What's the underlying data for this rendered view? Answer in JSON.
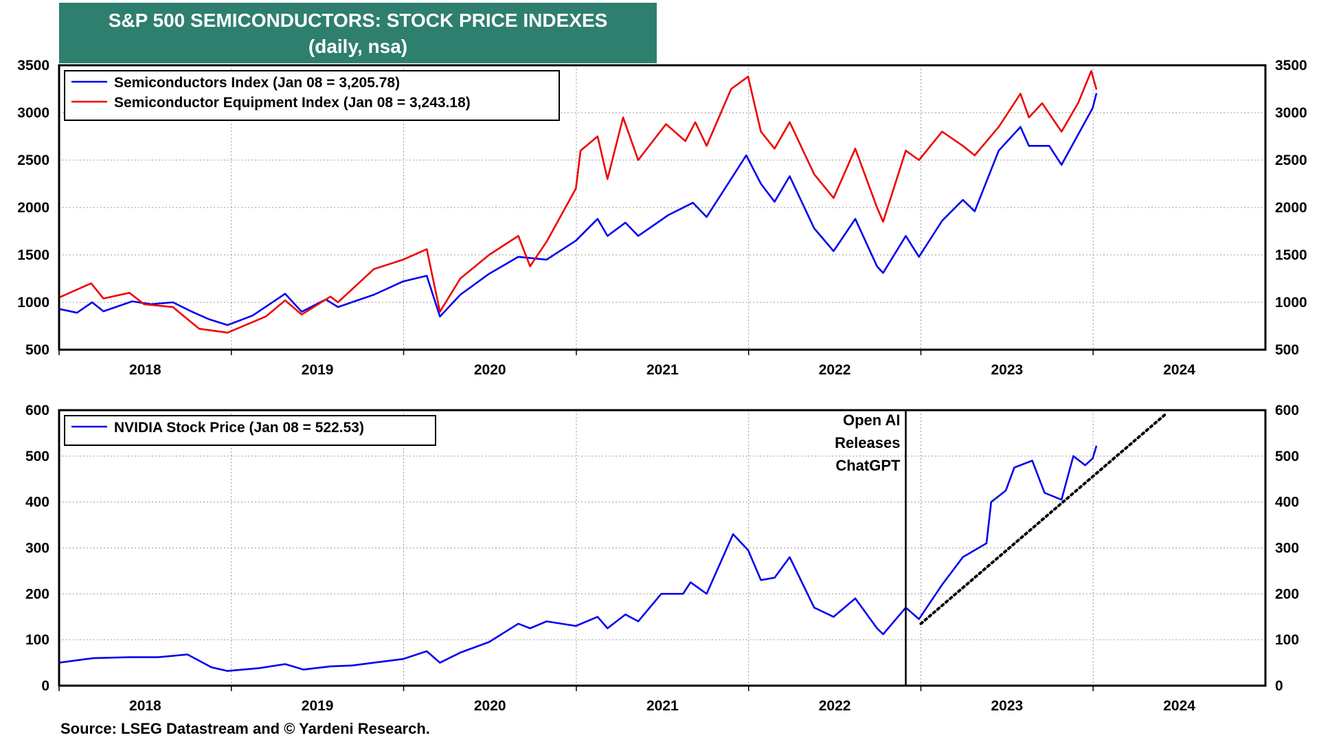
{
  "header": {
    "title": "S&P 500 SEMICONDUCTORS: STOCK PRICE INDEXES",
    "subtitle": "(daily, nsa)"
  },
  "footer": {
    "source": "Source: LSEG Datastream and © Yardeni Research."
  },
  "colors": {
    "title_bg": "#2f7f6e",
    "semis": "#0000ee",
    "equipment": "#ee0000",
    "nvidia": "#0000ee"
  },
  "chart_data": [
    {
      "type": "line",
      "x_tick_labels": [
        "2018",
        "2019",
        "2020",
        "2021",
        "2022",
        "2023",
        "2024"
      ],
      "xlim": [
        "2018-01-01",
        "2024-12-31"
      ],
      "ylim": [
        500,
        3500
      ],
      "y_ticks": [
        500,
        1000,
        1500,
        2000,
        2500,
        3000,
        3500
      ],
      "grid": true,
      "legend_position": "top-left",
      "series": [
        {
          "name": "Semiconductors Index (Jan 08 = 3,205.78)",
          "color": "#0000ee",
          "points": [
            [
              "2018-01-01",
              930
            ],
            [
              "2018-02-08",
              890
            ],
            [
              "2018-03-12",
              1000
            ],
            [
              "2018-04-05",
              905
            ],
            [
              "2018-06-05",
              1010
            ],
            [
              "2018-07-15",
              980
            ],
            [
              "2018-08-30",
              1000
            ],
            [
              "2018-10-10",
              900
            ],
            [
              "2018-11-15",
              820
            ],
            [
              "2018-12-24",
              760
            ],
            [
              "2019-02-15",
              860
            ],
            [
              "2019-04-25",
              1090
            ],
            [
              "2019-05-30",
              900
            ],
            [
              "2019-07-20",
              1030
            ],
            [
              "2019-08-15",
              950
            ],
            [
              "2019-10-30",
              1080
            ],
            [
              "2019-12-31",
              1220
            ],
            [
              "2020-02-19",
              1280
            ],
            [
              "2020-03-18",
              850
            ],
            [
              "2020-04-30",
              1080
            ],
            [
              "2020-06-30",
              1300
            ],
            [
              "2020-08-31",
              1480
            ],
            [
              "2020-10-30",
              1450
            ],
            [
              "2020-12-31",
              1650
            ],
            [
              "2021-02-15",
              1880
            ],
            [
              "2021-03-08",
              1700
            ],
            [
              "2021-04-15",
              1840
            ],
            [
              "2021-05-12",
              1700
            ],
            [
              "2021-07-15",
              1920
            ],
            [
              "2021-09-05",
              2050
            ],
            [
              "2021-10-04",
              1900
            ],
            [
              "2021-12-27",
              2550
            ],
            [
              "2022-01-27",
              2250
            ],
            [
              "2022-02-25",
              2060
            ],
            [
              "2022-03-29",
              2330
            ],
            [
              "2022-05-20",
              1780
            ],
            [
              "2022-06-30",
              1540
            ],
            [
              "2022-08-15",
              1880
            ],
            [
              "2022-09-30",
              1380
            ],
            [
              "2022-10-13",
              1310
            ],
            [
              "2022-11-30",
              1700
            ],
            [
              "2022-12-28",
              1480
            ],
            [
              "2023-02-15",
              1860
            ],
            [
              "2023-03-31",
              2080
            ],
            [
              "2023-04-25",
              1960
            ],
            [
              "2023-06-15",
              2600
            ],
            [
              "2023-07-31",
              2850
            ],
            [
              "2023-08-18",
              2650
            ],
            [
              "2023-09-30",
              2650
            ],
            [
              "2023-10-26",
              2450
            ],
            [
              "2023-12-31",
              3050
            ],
            [
              "2024-01-08",
              3205.78
            ]
          ]
        },
        {
          "name": "Semiconductor Equipment Index (Jan 08 = 3,243.18)",
          "color": "#ee0000",
          "points": [
            [
              "2018-01-01",
              1050
            ],
            [
              "2018-03-10",
              1200
            ],
            [
              "2018-04-05",
              1040
            ],
            [
              "2018-05-30",
              1100
            ],
            [
              "2018-06-30",
              980
            ],
            [
              "2018-08-30",
              950
            ],
            [
              "2018-10-25",
              720
            ],
            [
              "2018-12-24",
              680
            ],
            [
              "2019-03-15",
              850
            ],
            [
              "2019-04-25",
              1020
            ],
            [
              "2019-05-30",
              870
            ],
            [
              "2019-07-30",
              1060
            ],
            [
              "2019-08-15",
              1000
            ],
            [
              "2019-10-30",
              1350
            ],
            [
              "2019-12-31",
              1450
            ],
            [
              "2020-02-19",
              1560
            ],
            [
              "2020-03-18",
              900
            ],
            [
              "2020-04-30",
              1250
            ],
            [
              "2020-06-30",
              1500
            ],
            [
              "2020-08-31",
              1700
            ],
            [
              "2020-09-25",
              1380
            ],
            [
              "2020-10-30",
              1640
            ],
            [
              "2020-12-31",
              2200
            ],
            [
              "2021-01-10",
              2600
            ],
            [
              "2021-02-15",
              2750
            ],
            [
              "2021-03-08",
              2300
            ],
            [
              "2021-04-10",
              2950
            ],
            [
              "2021-05-12",
              2500
            ],
            [
              "2021-07-10",
              2880
            ],
            [
              "2021-08-20",
              2700
            ],
            [
              "2021-09-10",
              2900
            ],
            [
              "2021-10-04",
              2650
            ],
            [
              "2021-11-25",
              3250
            ],
            [
              "2021-12-31",
              3380
            ],
            [
              "2022-01-27",
              2800
            ],
            [
              "2022-02-25",
              2620
            ],
            [
              "2022-03-29",
              2900
            ],
            [
              "2022-05-20",
              2350
            ],
            [
              "2022-06-30",
              2100
            ],
            [
              "2022-08-15",
              2620
            ],
            [
              "2022-09-30",
              2000
            ],
            [
              "2022-10-13",
              1850
            ],
            [
              "2022-11-30",
              2600
            ],
            [
              "2022-12-28",
              2500
            ],
            [
              "2023-02-15",
              2800
            ],
            [
              "2023-03-31",
              2650
            ],
            [
              "2023-04-25",
              2550
            ],
            [
              "2023-06-15",
              2850
            ],
            [
              "2023-07-31",
              3200
            ],
            [
              "2023-08-18",
              2950
            ],
            [
              "2023-09-15",
              3100
            ],
            [
              "2023-10-26",
              2800
            ],
            [
              "2023-11-30",
              3100
            ],
            [
              "2023-12-28",
              3440
            ],
            [
              "2024-01-08",
              3243.18
            ]
          ]
        }
      ]
    },
    {
      "type": "line",
      "x_tick_labels": [
        "2018",
        "2019",
        "2020",
        "2021",
        "2022",
        "2023",
        "2024"
      ],
      "xlim": [
        "2018-01-01",
        "2024-12-31"
      ],
      "ylim": [
        0,
        600
      ],
      "y_ticks": [
        0,
        100,
        200,
        300,
        400,
        500,
        600
      ],
      "grid": true,
      "legend_position": "top-left",
      "series": [
        {
          "name": "NVIDIA Stock Price (Jan 08 = 522.53)",
          "color": "#0000ee",
          "points": [
            [
              "2018-01-01",
              50
            ],
            [
              "2018-03-15",
              60
            ],
            [
              "2018-05-30",
              62
            ],
            [
              "2018-07-30",
              62
            ],
            [
              "2018-09-30",
              68
            ],
            [
              "2018-11-20",
              40
            ],
            [
              "2018-12-24",
              32
            ],
            [
              "2019-02-28",
              38
            ],
            [
              "2019-04-25",
              47
            ],
            [
              "2019-06-03",
              35
            ],
            [
              "2019-07-30",
              42
            ],
            [
              "2019-09-15",
              44
            ],
            [
              "2019-10-30",
              50
            ],
            [
              "2019-12-31",
              58
            ],
            [
              "2020-02-19",
              75
            ],
            [
              "2020-03-18",
              50
            ],
            [
              "2020-04-30",
              72
            ],
            [
              "2020-06-30",
              95
            ],
            [
              "2020-08-31",
              135
            ],
            [
              "2020-09-25",
              125
            ],
            [
              "2020-10-30",
              140
            ],
            [
              "2020-12-31",
              130
            ],
            [
              "2021-02-15",
              150
            ],
            [
              "2021-03-08",
              125
            ],
            [
              "2021-04-15",
              155
            ],
            [
              "2021-05-12",
              140
            ],
            [
              "2021-06-30",
              200
            ],
            [
              "2021-08-15",
              200
            ],
            [
              "2021-08-31",
              225
            ],
            [
              "2021-10-04",
              200
            ],
            [
              "2021-11-29",
              330
            ],
            [
              "2021-12-31",
              295
            ],
            [
              "2022-01-27",
              230
            ],
            [
              "2022-02-25",
              235
            ],
            [
              "2022-03-29",
              280
            ],
            [
              "2022-05-20",
              170
            ],
            [
              "2022-06-30",
              150
            ],
            [
              "2022-08-15",
              190
            ],
            [
              "2022-09-30",
              125
            ],
            [
              "2022-10-13",
              112
            ],
            [
              "2022-11-30",
              170
            ],
            [
              "2022-12-28",
              145
            ],
            [
              "2023-02-15",
              220
            ],
            [
              "2023-03-31",
              280
            ],
            [
              "2023-05-20",
              310
            ],
            [
              "2023-05-30",
              400
            ],
            [
              "2023-06-30",
              425
            ],
            [
              "2023-07-18",
              475
            ],
            [
              "2023-08-25",
              490
            ],
            [
              "2023-09-20",
              420
            ],
            [
              "2023-10-26",
              405
            ],
            [
              "2023-11-20",
              500
            ],
            [
              "2023-12-15",
              480
            ],
            [
              "2023-12-31",
              495
            ],
            [
              "2024-01-08",
              522.53
            ]
          ]
        }
      ],
      "annotation": {
        "text": [
          "Open AI",
          "Releases",
          "ChatGPT"
        ],
        "date": "2022-11-30"
      },
      "trendline": {
        "style": "dotted",
        "from": [
          "2023-01-01",
          135
        ],
        "to": [
          "2024-06-01",
          590
        ]
      }
    }
  ]
}
